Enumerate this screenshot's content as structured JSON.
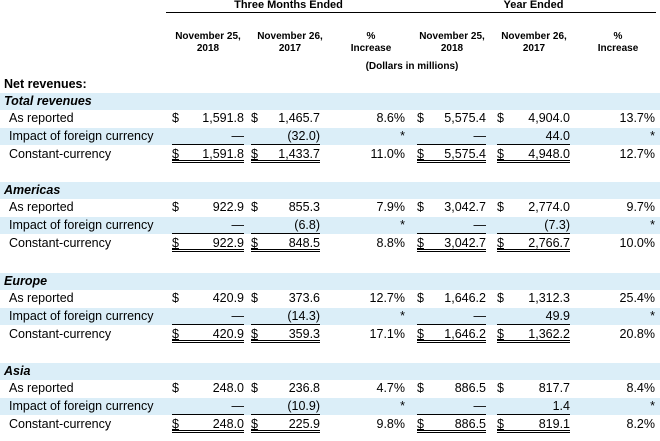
{
  "header": {
    "group1": "Three Months Ended",
    "group2": "Year Ended",
    "col1": [
      "November 25,",
      "2018"
    ],
    "col2": [
      "November 26,",
      "2017"
    ],
    "col3": [
      "%",
      "Increase"
    ],
    "col4": [
      "November 25,",
      "2018"
    ],
    "col5": [
      "November 26,",
      "2017"
    ],
    "col6": [
      "%",
      "Increase"
    ],
    "subnote": "(Dollars in millions)"
  },
  "title": "Net revenues:",
  "sections": [
    {
      "name": "Total revenues",
      "rows": [
        {
          "label": "As reported",
          "c1": "1,591.8",
          "c2": "1,465.7",
          "c3": "8.6%",
          "c4": "5,575.4",
          "c5": "4,904.0",
          "c6": "13.7%"
        },
        {
          "label": "Impact of foreign currency",
          "c1": "—",
          "c2": "(32.0)",
          "c3": "*",
          "c4": "—",
          "c5": "44.0",
          "c6": "*"
        },
        {
          "label": "Constant-currency",
          "c1": "1,591.8",
          "c2": "1,433.7",
          "c3": "11.0%",
          "c4": "5,575.4",
          "c5": "4,948.0",
          "c6": "12.7%"
        }
      ]
    },
    {
      "name": "Americas",
      "rows": [
        {
          "label": "As reported",
          "c1": "922.9",
          "c2": "855.3",
          "c3": "7.9%",
          "c4": "3,042.7",
          "c5": "2,774.0",
          "c6": "9.7%"
        },
        {
          "label": "Impact of foreign currency",
          "c1": "—",
          "c2": "(6.8)",
          "c3": "*",
          "c4": "—",
          "c5": "(7.3)",
          "c6": "*"
        },
        {
          "label": "Constant-currency",
          "c1": "922.9",
          "c2": "848.5",
          "c3": "8.8%",
          "c4": "3,042.7",
          "c5": "2,766.7",
          "c6": "10.0%"
        }
      ]
    },
    {
      "name": "Europe",
      "rows": [
        {
          "label": "As reported",
          "c1": "420.9",
          "c2": "373.6",
          "c3": "12.7%",
          "c4": "1,646.2",
          "c5": "1,312.3",
          "c6": "25.4%"
        },
        {
          "label": "Impact of foreign currency",
          "c1": "—",
          "c2": "(14.3)",
          "c3": "*",
          "c4": "—",
          "c5": "49.9",
          "c6": "*"
        },
        {
          "label": "Constant-currency",
          "c1": "420.9",
          "c2": "359.3",
          "c3": "17.1%",
          "c4": "1,646.2",
          "c5": "1,362.2",
          "c6": "20.8%"
        }
      ]
    },
    {
      "name": "Asia",
      "rows": [
        {
          "label": "As reported",
          "c1": "248.0",
          "c2": "236.8",
          "c3": "4.7%",
          "c4": "886.5",
          "c5": "817.7",
          "c6": "8.4%"
        },
        {
          "label": "Impact of foreign currency",
          "c1": "—",
          "c2": "(10.9)",
          "c3": "*",
          "c4": "—",
          "c5": "1.4",
          "c6": "*"
        },
        {
          "label": "Constant-currency",
          "c1": "248.0",
          "c2": "225.9",
          "c3": "9.8%",
          "c4": "886.5",
          "c5": "819.1",
          "c6": "8.2%"
        }
      ]
    }
  ],
  "currency_symbol": "$",
  "colors": {
    "shade": "#dbeef8"
  }
}
